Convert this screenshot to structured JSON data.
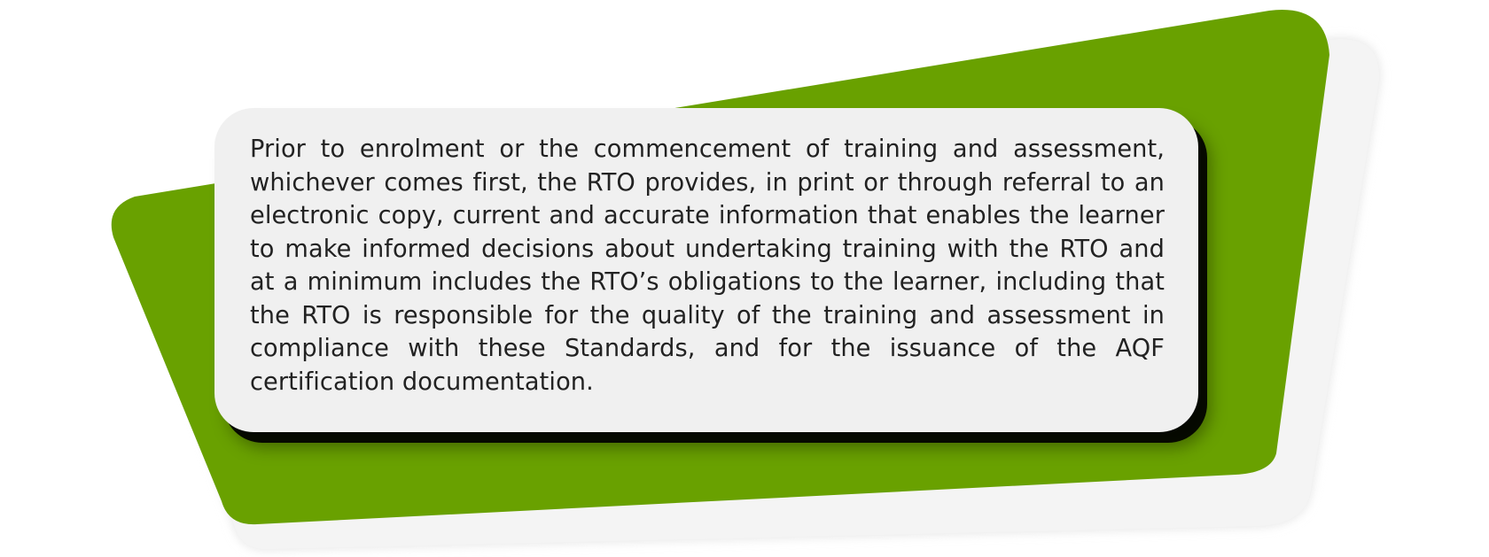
{
  "colors": {
    "background": "#ffffff",
    "accent_green": "#69a100",
    "card": "#f0f0f0",
    "card_shadow": "#000000",
    "text": "#222222"
  },
  "card": {
    "body": "Prior to enrolment or the commencement of training and assessment, whichever comes first, the RTO provides, in print or through referral to an electronic copy, current and accurate information that enables the learner to make informed decisions about undertaking training with the RTO and at a minimum includes the RTO’s obligations to the learner, including that the RTO is responsible for the quality of the training and assessment in compliance with these Standards, and for the issuance of the AQF certification documentation."
  }
}
